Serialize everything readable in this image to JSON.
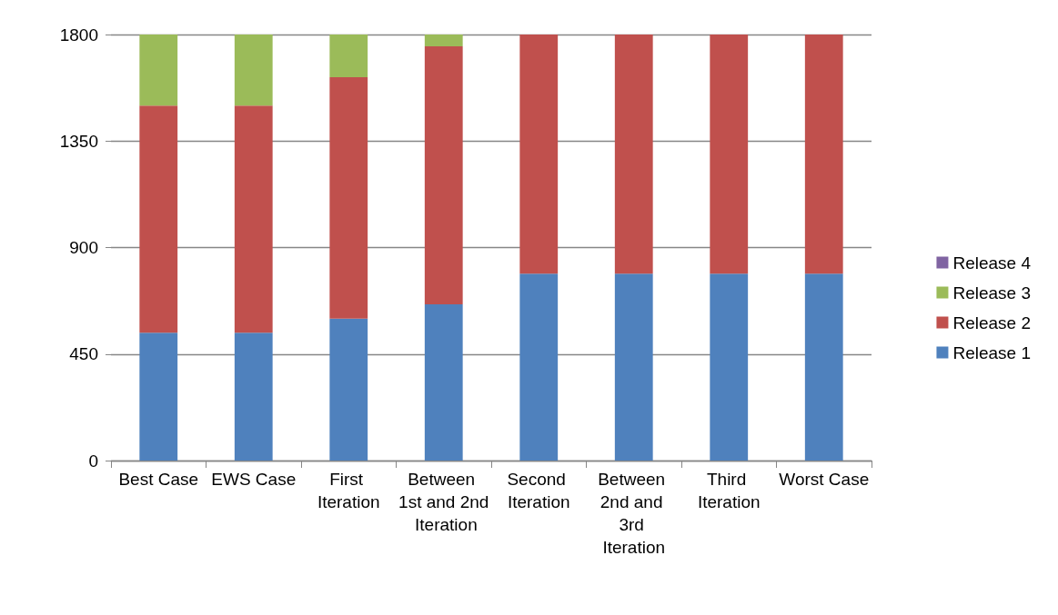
{
  "chart_data": {
    "type": "bar",
    "stacked": true,
    "categories": [
      "Best Case",
      "EWS Case",
      "First Iteration",
      "Between 1st and 2nd Iteration",
      "Second Iteration",
      "Between 2nd and 3rd Iteration",
      "Third Iteration",
      "Worst Case"
    ],
    "series": [
      {
        "name": "Release 1",
        "color": "#4f81bd",
        "values": [
          540,
          540,
          600,
          660,
          790,
          790,
          790,
          790
        ]
      },
      {
        "name": "Release 2",
        "color": "#c0504d",
        "values": [
          960,
          960,
          1020,
          1090,
          1010,
          1010,
          1010,
          1010
        ]
      },
      {
        "name": "Release 3",
        "color": "#9bbb59",
        "values": [
          300,
          300,
          180,
          50,
          0,
          0,
          0,
          0
        ]
      },
      {
        "name": "Release 4",
        "color": "#8064a2",
        "values": [
          0,
          0,
          0,
          0,
          0,
          0,
          0,
          0
        ]
      }
    ],
    "ylim": [
      0,
      1800
    ],
    "yticks": [
      0,
      450,
      900,
      1350,
      1800
    ],
    "grid": "y",
    "legend": "right"
  }
}
